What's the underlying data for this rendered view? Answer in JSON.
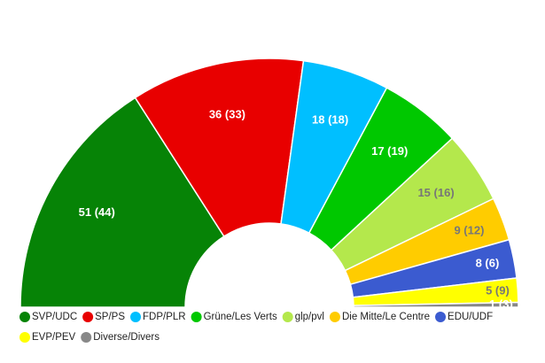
{
  "chart_data": {
    "type": "parliament",
    "categories": [
      "SVP/UDC",
      "SP/PS",
      "FDP/PLR",
      "Grüne/Les Verts",
      "glp/pvl",
      "Die Mitte/Le Centre",
      "EDU/UDF",
      "EVP/PEV",
      "Diverse/Divers"
    ],
    "values": [
      51,
      36,
      18,
      17,
      15,
      9,
      8,
      5,
      1
    ],
    "value_labels": [
      "51 (44)",
      "36 (33)",
      "18 (18)",
      "17 (19)",
      "15 (16)",
      "9 (12)",
      "8 (6)",
      "5 (9)",
      "1 (3)"
    ],
    "colors": [
      "#068306",
      "#e80000",
      "#00bfff",
      "#00c800",
      "#b4e84c",
      "#ffcc00",
      "#3b5bd0",
      "#ffff00",
      "#888888"
    ],
    "legend": "bottom"
  }
}
